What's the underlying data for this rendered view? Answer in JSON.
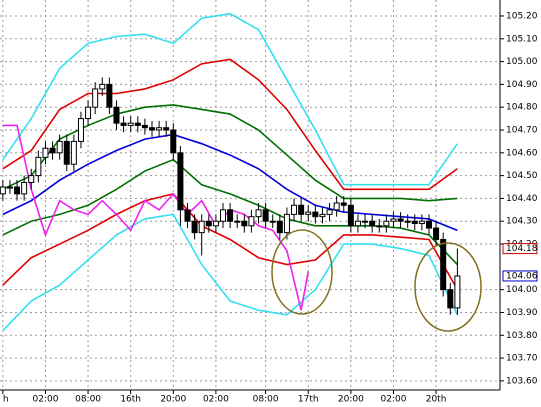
{
  "chart_data": {
    "type": "candlestick",
    "xlim": [
      -0.4,
      70
    ],
    "ylim": [
      103.56,
      105.27
    ],
    "grid": true,
    "xticks": [
      {
        "value": 0,
        "label": "h"
      },
      {
        "value": 6,
        "label": "02:00"
      },
      {
        "value": 12,
        "label": "08:00"
      },
      {
        "value": 18,
        "label": "16th"
      },
      {
        "value": 24,
        "label": "20:00"
      },
      {
        "value": 30,
        "label": "02:00"
      },
      {
        "value": 37,
        "label": "08:00"
      },
      {
        "value": 43,
        "label": "17th"
      },
      {
        "value": 49,
        "label": "20:00"
      },
      {
        "value": 55,
        "label": "02:00"
      },
      {
        "value": 61,
        "label": "20th"
      }
    ],
    "yticks": [
      {
        "value": 105.2,
        "label": "105.20"
      },
      {
        "value": 105.1,
        "label": "105.10"
      },
      {
        "value": 105.0,
        "label": "105.00"
      },
      {
        "value": 104.9,
        "label": "104.90"
      },
      {
        "value": 104.8,
        "label": "104.80"
      },
      {
        "value": 104.7,
        "label": "104.70"
      },
      {
        "value": 104.6,
        "label": "104.60"
      },
      {
        "value": 104.5,
        "label": "104.50"
      },
      {
        "value": 104.4,
        "label": "104.40"
      },
      {
        "value": 104.3,
        "label": "104.30"
      },
      {
        "value": 104.2,
        "label": "104.20"
      },
      {
        "value": 104.0,
        "label": "104.00"
      },
      {
        "value": 103.9,
        "label": "103.90"
      },
      {
        "value": 103.8,
        "label": "103.80"
      },
      {
        "value": 103.7,
        "label": "103.70"
      },
      {
        "value": 103.6,
        "label": "103.60"
      }
    ],
    "price_labels": [
      {
        "value": 104.18,
        "label": "104.18",
        "color": "#cc0000"
      },
      {
        "value": 104.06,
        "label": "104.06",
        "color": "#0000cc"
      }
    ],
    "candles": {
      "open": [
        104.42,
        104.45,
        104.45,
        104.42,
        104.47,
        104.5,
        104.58,
        104.62,
        104.6,
        104.65,
        104.55,
        104.65,
        104.75,
        104.8,
        104.88,
        104.9,
        104.8,
        104.73,
        104.72,
        104.73,
        104.72,
        104.71,
        104.7,
        104.71,
        104.7,
        104.6,
        104.35,
        104.3,
        104.25,
        104.3,
        104.28,
        104.3,
        104.35,
        104.3,
        104.3,
        104.28,
        104.32,
        104.35,
        104.3,
        104.3,
        104.25,
        104.33,
        104.37,
        104.33,
        104.34,
        104.32,
        104.33,
        104.35,
        104.38,
        104.37,
        104.28,
        104.3,
        104.3,
        104.28,
        104.28,
        104.3,
        104.31,
        104.3,
        104.3,
        104.29,
        104.3,
        104.27,
        104.22,
        104.0,
        103.92
      ],
      "high": [
        104.48,
        104.48,
        104.48,
        104.5,
        104.53,
        104.61,
        104.65,
        104.65,
        104.68,
        104.68,
        104.68,
        104.78,
        104.83,
        104.91,
        104.93,
        104.93,
        104.83,
        104.76,
        104.76,
        104.76,
        104.75,
        104.74,
        104.74,
        104.74,
        104.73,
        104.63,
        104.38,
        104.33,
        104.33,
        104.33,
        104.33,
        104.38,
        104.38,
        104.33,
        104.33,
        104.35,
        104.38,
        104.38,
        104.33,
        104.33,
        104.36,
        104.4,
        104.4,
        104.37,
        104.37,
        104.36,
        104.38,
        104.41,
        104.41,
        104.4,
        104.33,
        104.33,
        104.33,
        104.31,
        104.33,
        104.34,
        104.34,
        104.33,
        104.33,
        104.33,
        104.33,
        104.3,
        104.25,
        104.03,
        104.18
      ],
      "low": [
        104.39,
        104.42,
        104.39,
        104.39,
        104.44,
        104.47,
        104.55,
        104.57,
        104.57,
        104.52,
        104.52,
        104.62,
        104.72,
        104.77,
        104.85,
        104.77,
        104.7,
        104.69,
        104.69,
        104.69,
        104.68,
        104.67,
        104.67,
        104.67,
        104.57,
        104.28,
        104.27,
        104.22,
        104.15,
        104.25,
        104.25,
        104.27,
        104.27,
        104.27,
        104.25,
        104.25,
        104.29,
        104.27,
        104.27,
        104.22,
        104.22,
        104.3,
        104.3,
        104.3,
        104.29,
        104.29,
        104.3,
        104.32,
        104.34,
        104.25,
        104.25,
        104.27,
        104.25,
        104.25,
        104.25,
        104.27,
        104.27,
        104.27,
        104.26,
        104.26,
        104.24,
        104.19,
        103.97,
        103.89,
        103.89
      ],
      "close": [
        104.45,
        104.45,
        104.42,
        104.47,
        104.5,
        104.58,
        104.62,
        104.6,
        104.65,
        104.55,
        104.65,
        104.75,
        104.8,
        104.88,
        104.9,
        104.8,
        104.73,
        104.72,
        104.73,
        104.72,
        104.71,
        104.7,
        104.71,
        104.7,
        104.6,
        104.35,
        104.3,
        104.25,
        104.3,
        104.28,
        104.3,
        104.35,
        104.3,
        104.3,
        104.28,
        104.32,
        104.35,
        104.3,
        104.3,
        104.25,
        104.33,
        104.37,
        104.33,
        104.34,
        104.32,
        104.33,
        104.35,
        104.38,
        104.37,
        104.28,
        104.3,
        104.3,
        104.28,
        104.28,
        104.3,
        104.31,
        104.3,
        104.3,
        104.29,
        104.3,
        104.27,
        104.22,
        104.0,
        103.92,
        104.06
      ]
    },
    "series": [
      {
        "color": "#33e0f0",
        "x": [
          0,
          4,
          8,
          12,
          16,
          20,
          24,
          28,
          32,
          36,
          40,
          44,
          48,
          52,
          56,
          60,
          64
        ],
        "values": [
          104.57,
          104.75,
          104.97,
          105.08,
          105.11,
          105.12,
          105.08,
          105.19,
          105.21,
          105.14,
          104.92,
          104.7,
          104.46,
          104.46,
          104.46,
          104.46,
          104.64
        ]
      },
      {
        "color": "#e00000",
        "x": [
          0,
          4,
          8,
          12,
          16,
          20,
          24,
          28,
          32,
          36,
          40,
          44,
          48,
          52,
          56,
          60,
          64
        ],
        "values": [
          104.53,
          104.61,
          104.79,
          104.86,
          104.86,
          104.88,
          104.92,
          104.99,
          105.01,
          104.92,
          104.79,
          104.61,
          104.44,
          104.44,
          104.44,
          104.44,
          104.53
        ]
      },
      {
        "color": "#007000",
        "x": [
          0,
          4,
          8,
          12,
          16,
          20,
          24,
          28,
          32,
          36,
          40,
          44,
          48,
          52,
          56,
          60,
          64
        ],
        "values": [
          104.44,
          104.5,
          104.66,
          104.72,
          104.77,
          104.8,
          104.81,
          104.79,
          104.77,
          104.7,
          104.59,
          104.48,
          104.4,
          104.4,
          104.4,
          104.39,
          104.4
        ]
      },
      {
        "color": "#0000dd",
        "x": [
          0,
          4,
          8,
          12,
          16,
          20,
          24,
          28,
          32,
          36,
          40,
          44,
          48,
          52,
          56,
          60,
          64
        ],
        "values": [
          104.33,
          104.39,
          104.48,
          104.55,
          104.61,
          104.66,
          104.68,
          104.64,
          104.59,
          104.53,
          104.44,
          104.37,
          104.34,
          104.33,
          104.32,
          104.31,
          104.26
        ]
      },
      {
        "color": "#007000",
        "x": [
          0,
          4,
          8,
          12,
          16,
          20,
          24,
          28,
          32,
          36,
          40,
          44,
          48,
          52,
          56,
          60,
          64
        ],
        "values": [
          104.24,
          104.3,
          104.33,
          104.37,
          104.44,
          104.52,
          104.57,
          104.46,
          104.42,
          104.37,
          104.31,
          104.28,
          104.28,
          104.28,
          104.27,
          104.24,
          104.11
        ]
      },
      {
        "color": "#e00000",
        "x": [
          0,
          4,
          8,
          12,
          16,
          20,
          24,
          28,
          32,
          36,
          40,
          44,
          48,
          52,
          56,
          60,
          64
        ],
        "values": [
          104.02,
          104.14,
          104.2,
          104.26,
          104.33,
          104.39,
          104.42,
          104.28,
          104.22,
          104.14,
          104.11,
          104.13,
          104.24,
          104.24,
          104.23,
          104.22,
          104.0
        ]
      },
      {
        "color": "#33e0f0",
        "x": [
          0,
          4,
          8,
          12,
          16,
          20,
          24,
          28,
          32,
          36,
          40,
          44,
          48,
          52,
          56,
          60,
          64
        ],
        "values": [
          103.82,
          103.95,
          104.02,
          104.13,
          104.24,
          104.31,
          104.33,
          104.11,
          103.95,
          103.91,
          103.89,
          104.0,
          104.2,
          104.2,
          104.18,
          104.15,
          103.89
        ]
      },
      {
        "color": "#ee22ee",
        "x": [
          0,
          2,
          4,
          6,
          8,
          10,
          12,
          14,
          16,
          18,
          20,
          22,
          24,
          26,
          28,
          30,
          32,
          34,
          36,
          38,
          40,
          42,
          43
        ],
        "values": [
          104.72,
          104.72,
          104.44,
          104.24,
          104.39,
          104.35,
          104.33,
          104.39,
          104.33,
          104.26,
          104.39,
          104.35,
          104.42,
          104.33,
          104.39,
          104.28,
          104.35,
          104.33,
          104.28,
          104.26,
          104.17,
          103.91,
          104.08
        ]
      }
    ]
  }
}
